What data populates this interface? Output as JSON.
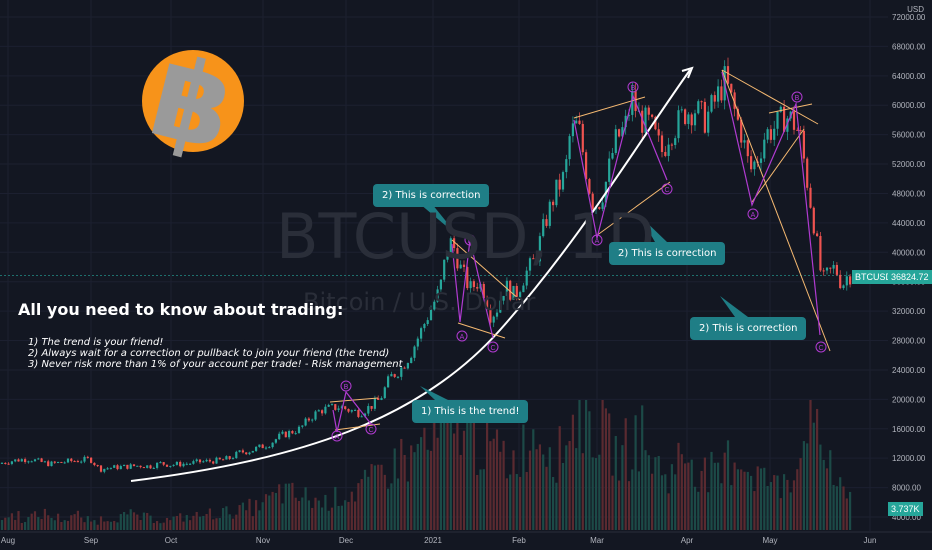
{
  "chart_data": {
    "type": "candlestick",
    "symbol_watermark": "BTCUSD, 1D",
    "name_watermark": "Bitcoin / U.S. Dollar",
    "currency": "USD",
    "ylim": [
      2000,
      74000
    ],
    "y_ticks": [
      "72000.00",
      "68000.00",
      "64000.00",
      "60000.00",
      "56000.00",
      "52000.00",
      "48000.00",
      "44000.00",
      "40000.00",
      "36000.00",
      "32000.00",
      "28000.00",
      "24000.00",
      "20000.00",
      "16000.00",
      "12000.00",
      "8000.00",
      "4000.00"
    ],
    "x_ticks": [
      "Aug",
      "Sep",
      "Oct",
      "Nov",
      "Dec",
      "2021",
      "Feb",
      "Mar",
      "Apr",
      "May",
      "Jun"
    ],
    "price_path": [
      [
        0,
        11300
      ],
      [
        10,
        11600
      ],
      [
        20,
        11800
      ],
      [
        30,
        11900
      ],
      [
        40,
        11500
      ],
      [
        50,
        11200
      ],
      [
        60,
        11400
      ],
      [
        70,
        11600
      ],
      [
        80,
        11700
      ],
      [
        90,
        11900
      ],
      [
        100,
        10500
      ],
      [
        110,
        10700
      ],
      [
        120,
        10800
      ],
      [
        130,
        10900
      ],
      [
        140,
        11000
      ],
      [
        150,
        10900
      ],
      [
        160,
        11300
      ],
      [
        170,
        11100
      ],
      [
        180,
        11200
      ],
      [
        190,
        11300
      ],
      [
        200,
        11500
      ],
      [
        210,
        11600
      ],
      [
        220,
        11700
      ],
      [
        230,
        12000
      ],
      [
        240,
        12800
      ],
      [
        250,
        13000
      ],
      [
        260,
        13500
      ],
      [
        270,
        14000
      ],
      [
        280,
        15000
      ],
      [
        290,
        15500
      ],
      [
        300,
        16000
      ],
      [
        310,
        17500
      ],
      [
        320,
        18500
      ],
      [
        330,
        18800
      ],
      [
        340,
        19000
      ],
      [
        350,
        18500
      ],
      [
        360,
        18200
      ],
      [
        370,
        19000
      ],
      [
        380,
        20000
      ],
      [
        390,
        23000
      ],
      [
        400,
        24000
      ],
      [
        410,
        26000
      ],
      [
        420,
        29000
      ],
      [
        430,
        32000
      ],
      [
        440,
        35000
      ],
      [
        447,
        40500
      ],
      [
        452,
        41500
      ],
      [
        460,
        38000
      ],
      [
        470,
        35000
      ],
      [
        478,
        36000
      ],
      [
        485,
        34500
      ],
      [
        490,
        31500
      ],
      [
        496,
        32000
      ],
      [
        505,
        35500
      ],
      [
        515,
        34000
      ],
      [
        525,
        37000
      ],
      [
        535,
        39000
      ],
      [
        545,
        44000
      ],
      [
        555,
        48000
      ],
      [
        565,
        50500
      ],
      [
        570,
        56000
      ],
      [
        578,
        57500
      ],
      [
        585,
        52000
      ],
      [
        592,
        47000
      ],
      [
        598,
        46500
      ],
      [
        605,
        49000
      ],
      [
        615,
        55000
      ],
      [
        625,
        57000
      ],
      [
        632,
        61000
      ],
      [
        640,
        58000
      ],
      [
        650,
        57500
      ],
      [
        657,
        55000
      ],
      [
        663,
        53500
      ],
      [
        668,
        56000
      ],
      [
        675,
        57000
      ],
      [
        685,
        59000
      ],
      [
        695,
        59500
      ],
      [
        705,
        58000
      ],
      [
        715,
        60500
      ],
      [
        725,
        63500
      ],
      [
        735,
        59000
      ],
      [
        742,
        56000
      ],
      [
        750,
        51000
      ],
      [
        758,
        53000
      ],
      [
        765,
        56000
      ],
      [
        775,
        57000
      ],
      [
        785,
        58500
      ],
      [
        792,
        58000
      ],
      [
        800,
        56000
      ],
      [
        808,
        49000
      ],
      [
        815,
        43000
      ],
      [
        822,
        36000
      ],
      [
        828,
        37000
      ],
      [
        835,
        38000
      ],
      [
        842,
        35500
      ],
      [
        848,
        37000
      ],
      [
        852,
        36800
      ]
    ],
    "volume": [
      10,
      12,
      9,
      11,
      13,
      10,
      9,
      12,
      8,
      7,
      9,
      10,
      11,
      12,
      10,
      9,
      8,
      9,
      10,
      11,
      12,
      13,
      14,
      15,
      16,
      18,
      22,
      25,
      30,
      28,
      26,
      24,
      22,
      25,
      28,
      30,
      35,
      38,
      45,
      50,
      60,
      55,
      70,
      65,
      75,
      80,
      90,
      85,
      70,
      65,
      60,
      55,
      65,
      75,
      80,
      70,
      60,
      85,
      95,
      90,
      80,
      70,
      60,
      65,
      75,
      60,
      50,
      45,
      55,
      60,
      50,
      45,
      40,
      55,
      60,
      50,
      45,
      40,
      35,
      45,
      55,
      100,
      70,
      60,
      40,
      25
    ],
    "last_price": "36824.72",
    "last_volume": "3.737K",
    "price_label": "BTCUSD",
    "wave_labels": [
      "A",
      "B",
      "C"
    ]
  },
  "headline": "All you need to know about trading:",
  "rules": [
    "1) The trend is your friend!",
    "2) Always wait for a correction or pullback to join your friend (the trend)",
    "3) Never risk more than 1% of your account per trade! - Risk management"
  ],
  "callouts": {
    "correction1": "2) This is correction",
    "correction2": "2) This is correction",
    "correction3": "2) This is correction",
    "trend": "1) This is the trend!"
  },
  "colors": {
    "background": "#131722",
    "up": "#26a69a",
    "down": "#ef5350",
    "callout": "#1f7e86",
    "trendline": "#ffffff",
    "fib_line": "#f5b971",
    "wave_line": "#b03bd1",
    "bitcoin_orange": "#f7931a"
  },
  "logo_icon": "bitcoin-logo-icon"
}
